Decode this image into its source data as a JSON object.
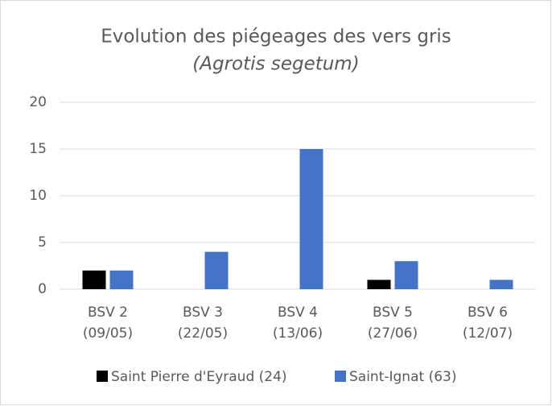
{
  "chart_data": {
    "type": "bar",
    "title": "Evolution des piégeages des vers gris",
    "subtitle": "(Agrotis segetum)",
    "categories": [
      [
        "BSV 2",
        "(09/05)"
      ],
      [
        "BSV 3",
        "(22/05)"
      ],
      [
        "BSV 4",
        "(13/06)"
      ],
      [
        "BSV 5",
        "(27/06)"
      ],
      [
        "BSV 6",
        "(12/07)"
      ]
    ],
    "series": [
      {
        "name": "Saint Pierre d'Eyraud (24)",
        "color": "#000000",
        "values": [
          2,
          0,
          0,
          1,
          0
        ]
      },
      {
        "name": "Saint-Ignat (63)",
        "color": "#4472c4",
        "values": [
          2,
          4,
          15,
          3,
          1
        ]
      }
    ],
    "ylim": [
      0,
      20
    ],
    "yticks": [
      0,
      5,
      10,
      15,
      20
    ],
    "grid": true,
    "legend": "bottom"
  }
}
